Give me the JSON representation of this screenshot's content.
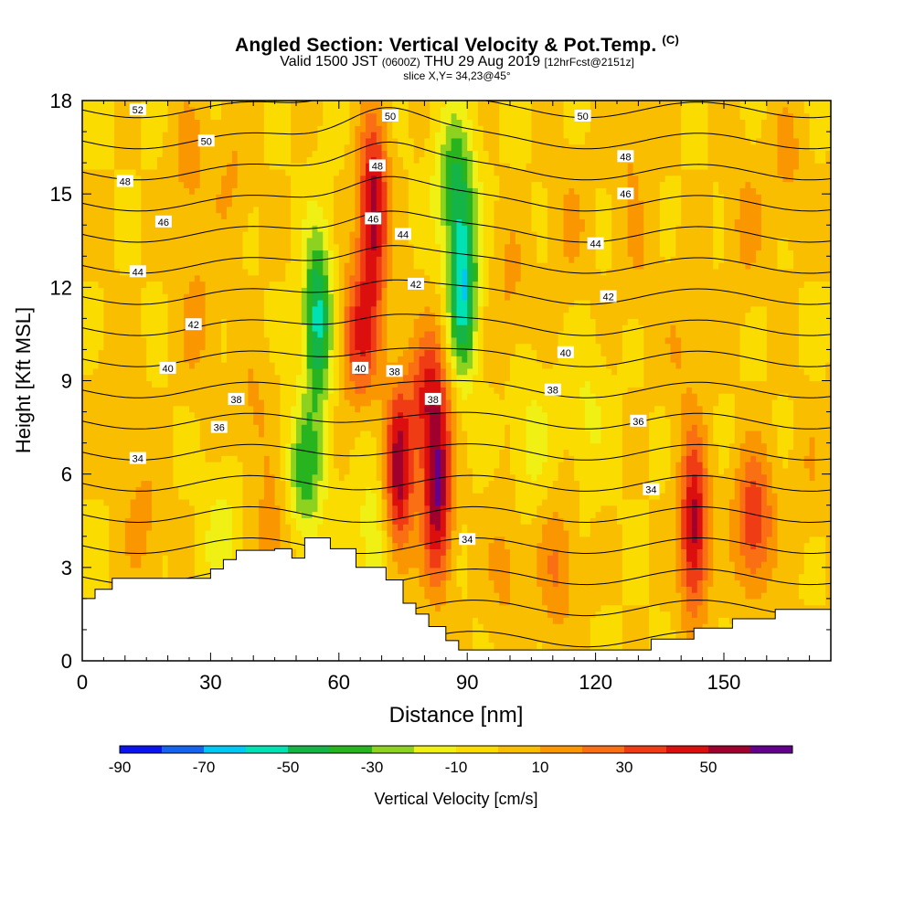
{
  "header": {
    "title": "Angled Section: Vertical Velocity & Pot.Temp.",
    "title_tag": "(C)",
    "valid_a": "Valid 1500 JST",
    "valid_b": "(0600Z)",
    "valid_c": "THU 29 Aug 2019",
    "valid_d": "[12hrFcst@2151z]",
    "slice": "slice X,Y= 34,23@45°"
  },
  "chart_data": {
    "type": "heatmap",
    "xlabel": "Distance [nm]",
    "ylabel": "Height [Kft MSL]",
    "xlim": [
      0,
      175
    ],
    "ylim": [
      0,
      18
    ],
    "x_ticks": [
      0,
      30,
      60,
      90,
      120,
      150
    ],
    "y_ticks": [
      0,
      3,
      6,
      9,
      12,
      15,
      18
    ],
    "colorbar": {
      "label": "Vertical Velocity [cm/s]",
      "tick_labels": [
        "-90",
        "-70",
        "-50",
        "-30",
        "-10",
        "10",
        "30",
        "50"
      ],
      "levels": [
        -90,
        -80,
        -70,
        -60,
        -50,
        -40,
        -30,
        -20,
        -10,
        0,
        10,
        20,
        30,
        40,
        50,
        60
      ],
      "colors": [
        "#0a14f0",
        "#1464f0",
        "#00c8f5",
        "#00e1b4",
        "#14b446",
        "#28b41e",
        "#8cd21e",
        "#f0f014",
        "#fadc00",
        "#fabe00",
        "#fa9600",
        "#fa6e14",
        "#f03c14",
        "#dc0f0f",
        "#a0002d",
        "#64008c"
      ]
    },
    "background_velocity": 0,
    "velocity_features": [
      {
        "x": 55,
        "y": 11,
        "value": -55
      },
      {
        "x": 52,
        "y": 6,
        "value": -35
      },
      {
        "x": 89,
        "y": 12,
        "value": -60
      },
      {
        "x": 87,
        "y": 15.5,
        "value": -35
      },
      {
        "x": 68,
        "y": 14.5,
        "value": 58
      },
      {
        "x": 65,
        "y": 10.5,
        "value": 40
      },
      {
        "x": 74,
        "y": 6,
        "value": 55
      },
      {
        "x": 83,
        "y": 5.3,
        "value": 58
      },
      {
        "x": 81,
        "y": 8.5,
        "value": 40
      },
      {
        "x": 143,
        "y": 4.3,
        "value": 55
      },
      {
        "x": 157,
        "y": 4.5,
        "value": 40
      },
      {
        "x": 111,
        "y": 3,
        "value": 20
      },
      {
        "x": 27,
        "y": 11,
        "value": 14
      },
      {
        "x": 25,
        "y": 16,
        "value": 14
      },
      {
        "x": 155,
        "y": 14,
        "value": 13
      },
      {
        "x": 165,
        "y": 16,
        "value": 12
      },
      {
        "x": 14,
        "y": 4.5,
        "value": 14
      },
      {
        "x": 45,
        "y": 4,
        "value": 18
      },
      {
        "x": 99,
        "y": 3,
        "value": 14
      },
      {
        "x": 128,
        "y": 17,
        "value": 12
      },
      {
        "x": 40,
        "y": 8,
        "value": 12
      },
      {
        "x": 100,
        "y": 12,
        "value": 12
      },
      {
        "x": 114,
        "y": 14,
        "value": 11
      },
      {
        "x": 35,
        "y": 15.5,
        "value": 11
      },
      {
        "x": 105,
        "y": 7,
        "value": -14
      },
      {
        "x": 33,
        "y": 3.8,
        "value": -16
      },
      {
        "x": 118,
        "y": 8,
        "value": -12
      },
      {
        "x": 68,
        "y": 4,
        "value": -18
      },
      {
        "x": 170,
        "y": 6,
        "value": 8
      },
      {
        "x": 130,
        "y": 13,
        "value": 9
      },
      {
        "x": 8,
        "y": 9,
        "value": 8
      },
      {
        "x": 140,
        "y": 10,
        "value": 10
      }
    ],
    "terrain_height": [
      {
        "x": 0,
        "y": 2.0
      },
      {
        "x": 3,
        "y": 2.3
      },
      {
        "x": 7,
        "y": 2.65
      },
      {
        "x": 30,
        "y": 2.95
      },
      {
        "x": 33,
        "y": 3.25
      },
      {
        "x": 36,
        "y": 3.55
      },
      {
        "x": 45,
        "y": 3.6
      },
      {
        "x": 49,
        "y": 3.3
      },
      {
        "x": 52,
        "y": 3.95
      },
      {
        "x": 58,
        "y": 3.6
      },
      {
        "x": 64,
        "y": 3.0
      },
      {
        "x": 71,
        "y": 2.6
      },
      {
        "x": 75,
        "y": 1.85
      },
      {
        "x": 78,
        "y": 1.5
      },
      {
        "x": 81,
        "y": 1.1
      },
      {
        "x": 85,
        "y": 0.65
      },
      {
        "x": 88,
        "y": 0.35
      },
      {
        "x": 129,
        "y": 0.35
      },
      {
        "x": 133,
        "y": 0.7
      },
      {
        "x": 143,
        "y": 1.05
      },
      {
        "x": 152,
        "y": 1.35
      },
      {
        "x": 162,
        "y": 1.65
      },
      {
        "x": 175,
        "y": 1.65
      }
    ],
    "theta_contour_levels": [
      33,
      34,
      35,
      36,
      37,
      38,
      39,
      40,
      41,
      42,
      43,
      44,
      45,
      46,
      47,
      48,
      49,
      50,
      51,
      52
    ],
    "theta_labels": [
      {
        "x": 13,
        "y": 17.7,
        "text": "52"
      },
      {
        "x": 29,
        "y": 16.7,
        "text": "50"
      },
      {
        "x": 10,
        "y": 15.4,
        "text": "48"
      },
      {
        "x": 19,
        "y": 14.1,
        "text": "46"
      },
      {
        "x": 13,
        "y": 12.5,
        "text": "44"
      },
      {
        "x": 26,
        "y": 10.8,
        "text": "42"
      },
      {
        "x": 20,
        "y": 9.4,
        "text": "40"
      },
      {
        "x": 36,
        "y": 8.4,
        "text": "38"
      },
      {
        "x": 32,
        "y": 7.5,
        "text": "36"
      },
      {
        "x": 13,
        "y": 6.5,
        "text": "34"
      },
      {
        "x": 72,
        "y": 17.5,
        "text": "50"
      },
      {
        "x": 69,
        "y": 15.9,
        "text": "48"
      },
      {
        "x": 68,
        "y": 14.2,
        "text": "46"
      },
      {
        "x": 75,
        "y": 13.7,
        "text": "44"
      },
      {
        "x": 78,
        "y": 12.1,
        "text": "42"
      },
      {
        "x": 65,
        "y": 9.4,
        "text": "40"
      },
      {
        "x": 73,
        "y": 9.3,
        "text": "38"
      },
      {
        "x": 82,
        "y": 8.4,
        "text": "38"
      },
      {
        "x": 90,
        "y": 3.9,
        "text": "34"
      },
      {
        "x": 117,
        "y": 17.5,
        "text": "50"
      },
      {
        "x": 127,
        "y": 16.2,
        "text": "48"
      },
      {
        "x": 127,
        "y": 15.0,
        "text": "46"
      },
      {
        "x": 120,
        "y": 13.4,
        "text": "44"
      },
      {
        "x": 123,
        "y": 11.7,
        "text": "42"
      },
      {
        "x": 113,
        "y": 9.9,
        "text": "40"
      },
      {
        "x": 110,
        "y": 8.7,
        "text": "38"
      },
      {
        "x": 130,
        "y": 7.7,
        "text": "36"
      },
      {
        "x": 133,
        "y": 5.5,
        "text": "34"
      }
    ]
  }
}
